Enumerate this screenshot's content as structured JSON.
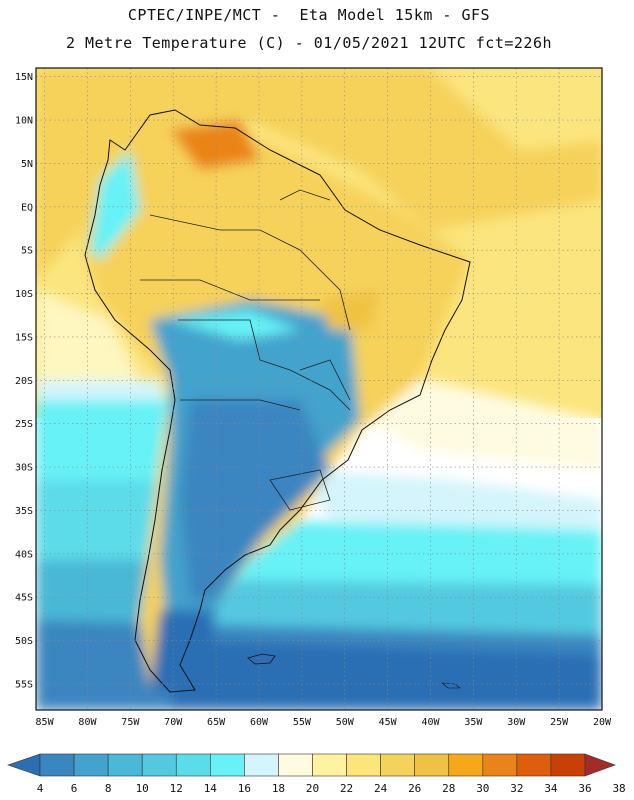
{
  "header": {
    "line1": "CPTEC/INPE/MCT -  Eta Model 15km - GFS",
    "line2": "2 Metre Temperature (C) - 01/05/2021 12UTC fct=226h"
  },
  "map": {
    "lat_labels": [
      "15N",
      "10N",
      "5N",
      "EQ",
      "5S",
      "10S",
      "15S",
      "20S",
      "25S",
      "30S",
      "35S",
      "40S",
      "45S",
      "50S",
      "55S"
    ],
    "lon_labels": [
      "85W",
      "80W",
      "75W",
      "70W",
      "65W",
      "60W",
      "55W",
      "50W",
      "45W",
      "40W",
      "35W",
      "30W",
      "25W",
      "20W"
    ],
    "extent": {
      "lon_min": -86,
      "lon_max": -20,
      "lat_min": -58,
      "lat_max": 16
    }
  },
  "colorbar": {
    "levels": [
      "4",
      "6",
      "8",
      "10",
      "12",
      "14",
      "16",
      "18",
      "20",
      "22",
      "24",
      "26",
      "28",
      "30",
      "32",
      "34",
      "36",
      "38"
    ],
    "colors": [
      "#2c6eb4",
      "#3a86c0",
      "#43a3cd",
      "#4ab8d6",
      "#52c9df",
      "#5bdce9",
      "#66f2f6",
      "#d3f5fb",
      "#fffbe0",
      "#fff3a1",
      "#fce57a",
      "#f5d25b",
      "#f0c243",
      "#f5a81a",
      "#ea8418",
      "#df5e0b",
      "#c84006",
      "#a52a2a"
    ],
    "unit": "C"
  }
}
